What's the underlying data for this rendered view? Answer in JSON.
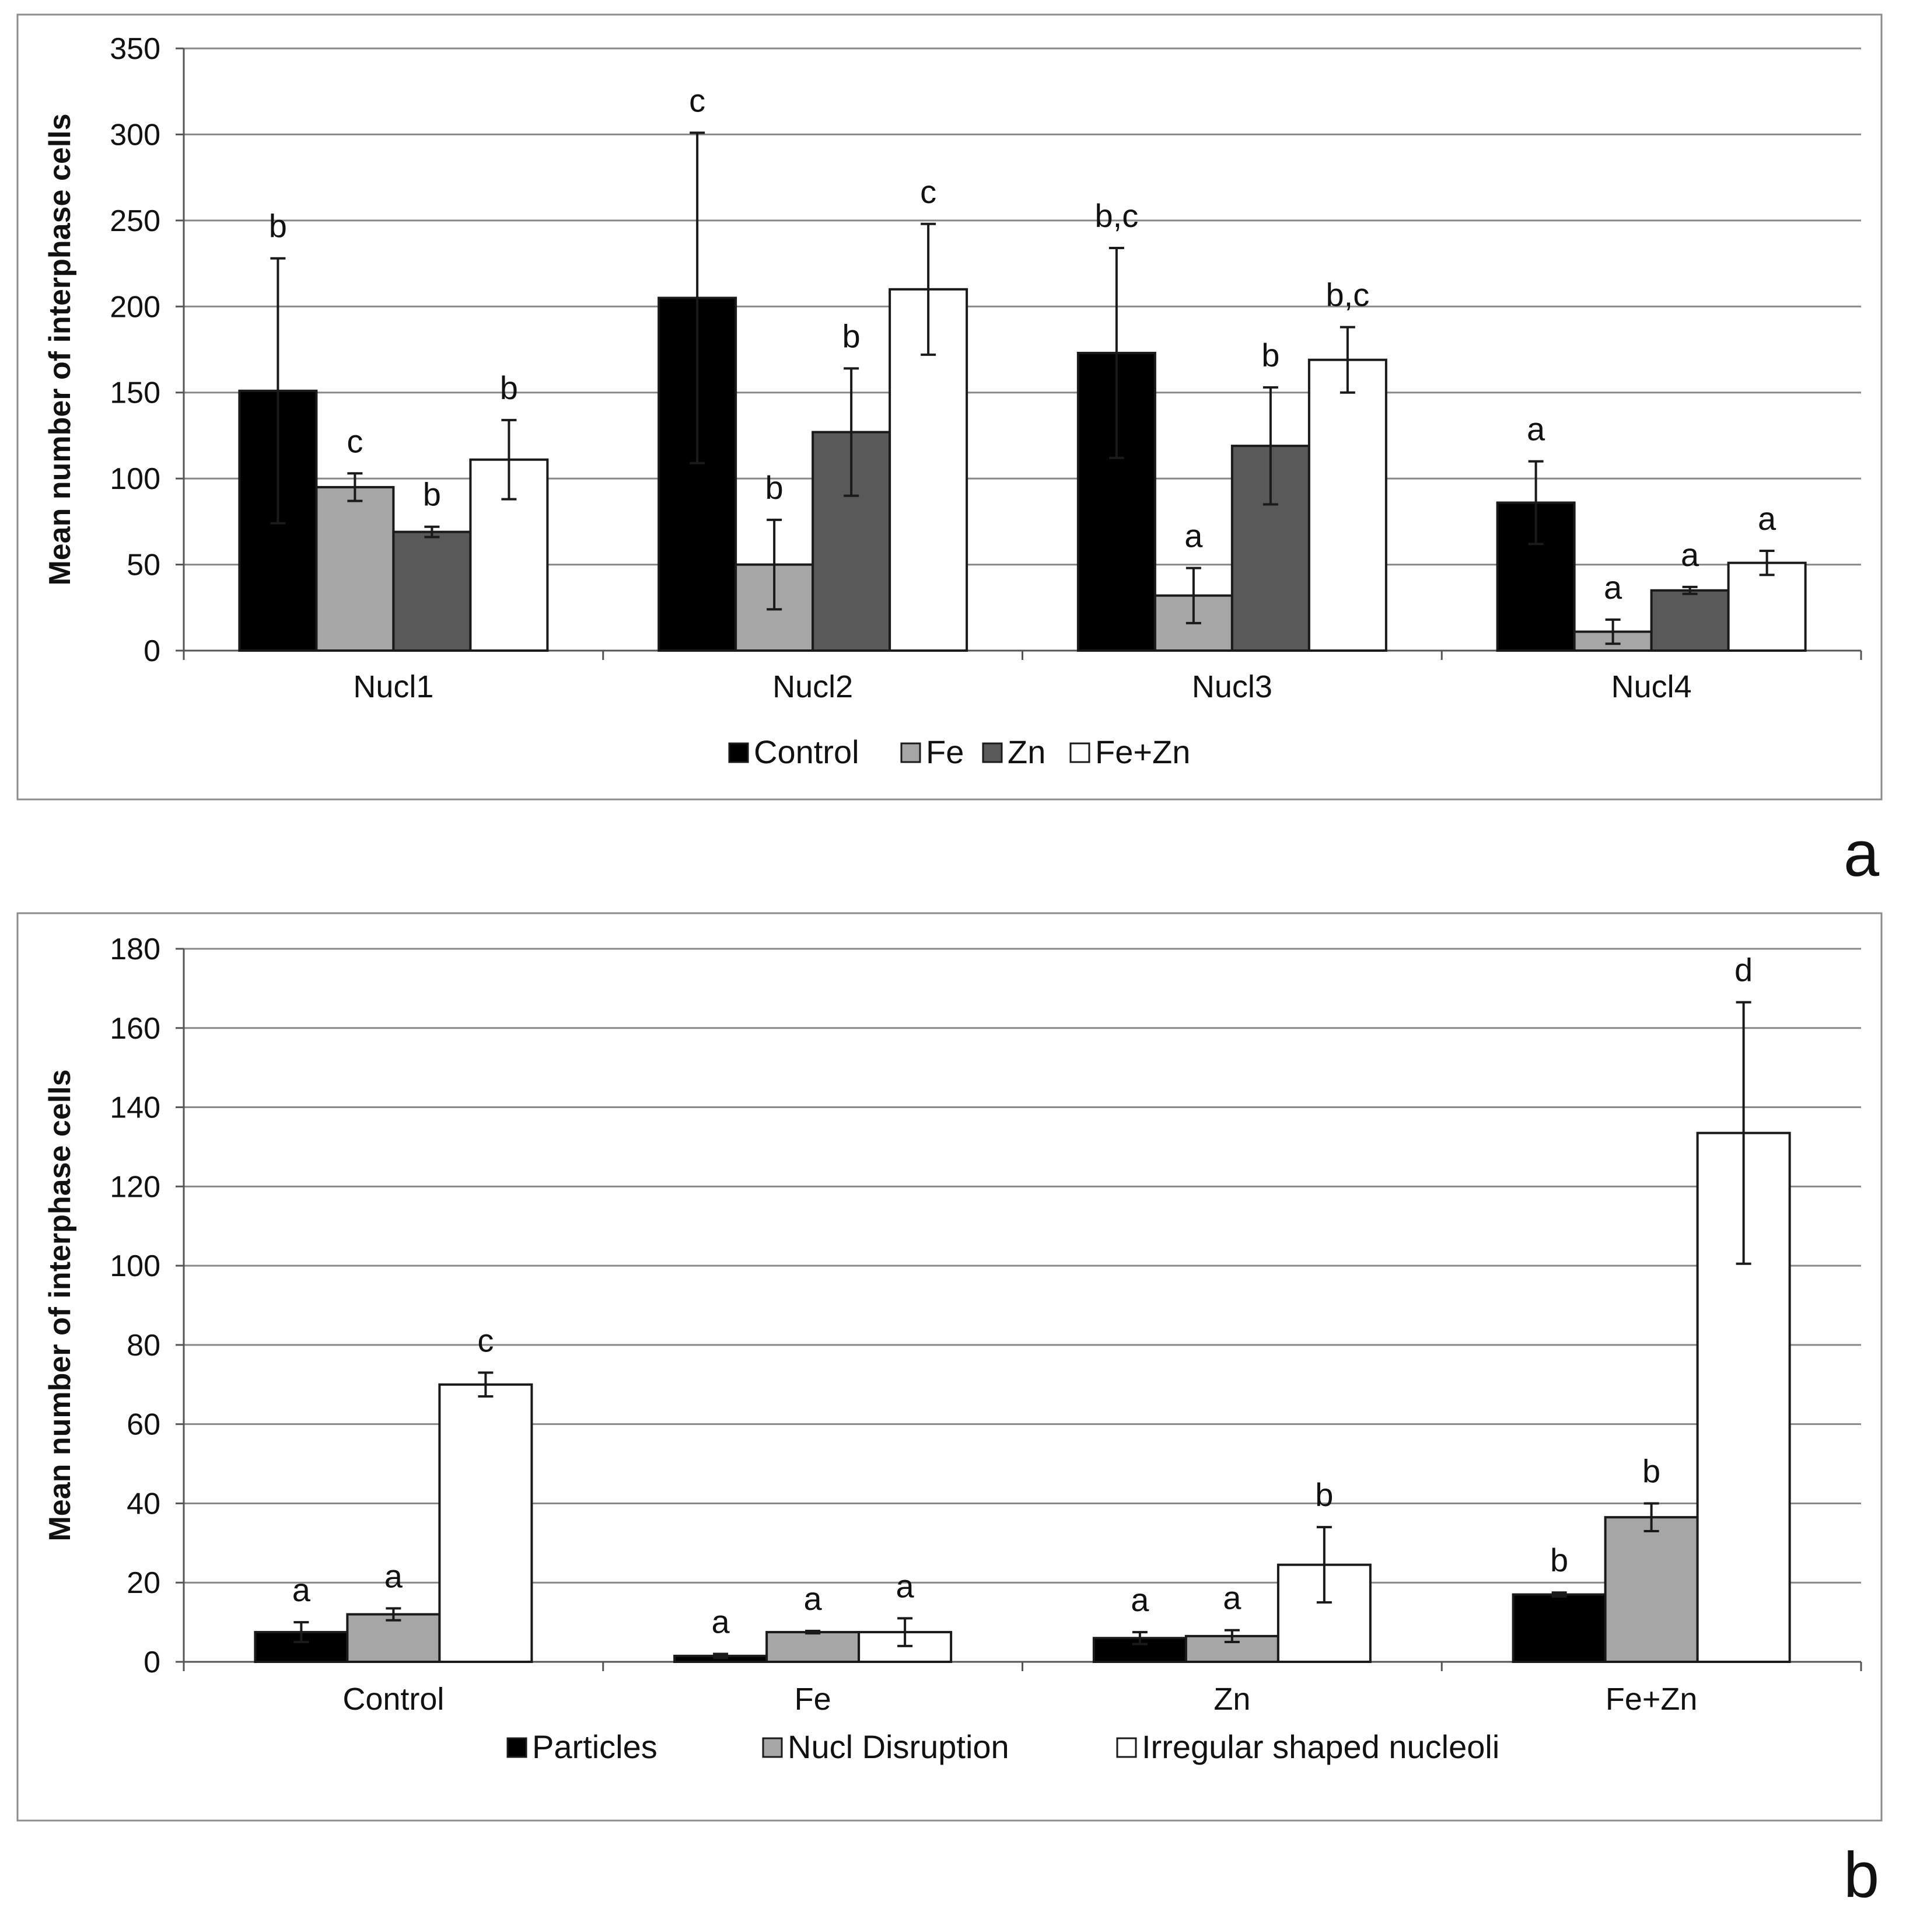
{
  "chart_data": [
    {
      "type": "bar",
      "panel_label": "a",
      "ylabel": "Mean number of interphase cells",
      "ylim": [
        0,
        350
      ],
      "yticks": [
        0,
        50,
        100,
        150,
        200,
        250,
        300,
        350
      ],
      "categories": [
        "Nucl1",
        "Nucl2",
        "Nucl3",
        "Nucl4"
      ],
      "grid": true,
      "legend_position": "bottom-center",
      "series": [
        {
          "name": "Control",
          "color": "#000000",
          "values": [
            151,
            205,
            173,
            86
          ],
          "errors": [
            77,
            96,
            61,
            24
          ],
          "letters": [
            "b",
            "c",
            "b,c",
            "a"
          ]
        },
        {
          "name": "Fe",
          "color": "#a6a6a6",
          "values": [
            95,
            50,
            32,
            11
          ],
          "errors": [
            8,
            26,
            16,
            7
          ],
          "letters": [
            "c",
            "b",
            "a",
            "a"
          ]
        },
        {
          "name": "Zn",
          "color": "#595959",
          "values": [
            69,
            127,
            119,
            35
          ],
          "errors": [
            3,
            37,
            34,
            2
          ],
          "letters": [
            "b",
            "b",
            "b",
            "a"
          ]
        },
        {
          "name": "Fe+Zn",
          "color": "#ffffff",
          "values": [
            111,
            210,
            169,
            51
          ],
          "errors": [
            23,
            38,
            19,
            7
          ],
          "letters": [
            "b",
            "c",
            "b,c",
            "a"
          ]
        }
      ]
    },
    {
      "type": "bar",
      "panel_label": "b",
      "ylabel": "Mean number of interphase cells",
      "ylim": [
        0,
        180
      ],
      "yticks": [
        0,
        20,
        40,
        60,
        80,
        100,
        120,
        140,
        160,
        180
      ],
      "categories": [
        "Control",
        "Fe",
        "Zn",
        "Fe+Zn"
      ],
      "grid": true,
      "legend_position": "bottom-center",
      "series": [
        {
          "name": "Particles",
          "color": "#000000",
          "values": [
            7.5,
            1.5,
            6,
            17
          ],
          "errors": [
            2.5,
            0.5,
            1.5,
            0.5
          ],
          "letters": [
            "a",
            "a",
            "a",
            "b"
          ]
        },
        {
          "name": "Nucl Disruption",
          "color": "#a6a6a6",
          "values": [
            12,
            7.5,
            6.5,
            36.5
          ],
          "errors": [
            1.5,
            0.3,
            1.5,
            3.5
          ],
          "letters": [
            "a",
            "a",
            "a",
            "b"
          ]
        },
        {
          "name": "Irregular shaped nucleoli",
          "color": "#ffffff",
          "values": [
            70,
            7.5,
            24.5,
            133.5
          ],
          "errors": [
            3,
            3.5,
            9.5,
            33
          ],
          "letters": [
            "c",
            "a",
            "b",
            "d"
          ]
        }
      ]
    }
  ]
}
